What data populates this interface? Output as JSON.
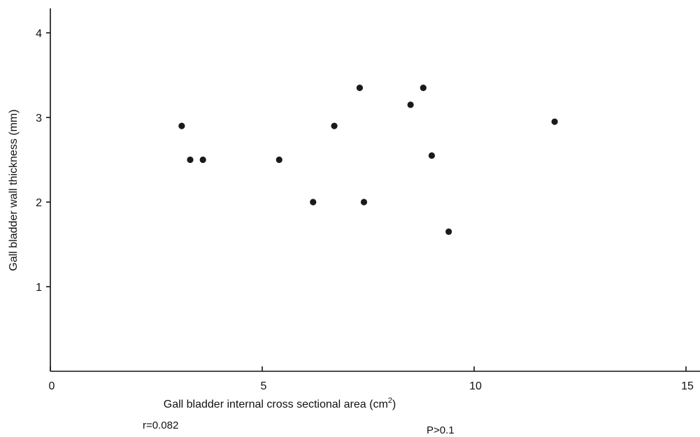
{
  "chart_data": {
    "type": "scatter",
    "title": "",
    "xlabel": "Gall bladder internal cross sectional area (cm",
    "xlabel_superscript": "2",
    "xlabel_suffix": ")",
    "ylabel": "Gall bladder wall thickness (mm)",
    "xlim": [
      0,
      15.3
    ],
    "ylim": [
      0,
      4.3
    ],
    "x_ticks": [
      0,
      5,
      10,
      15
    ],
    "y_ticks": [
      1,
      2,
      3,
      4
    ],
    "x_tick_labels": [
      "0",
      "5",
      "10",
      "15"
    ],
    "y_tick_labels": [
      "1",
      "2",
      "3",
      "4"
    ],
    "grid": false,
    "points": [
      {
        "x": 3.1,
        "y": 2.9
      },
      {
        "x": 3.3,
        "y": 2.5
      },
      {
        "x": 3.6,
        "y": 2.5
      },
      {
        "x": 5.4,
        "y": 2.5
      },
      {
        "x": 6.2,
        "y": 2.0
      },
      {
        "x": 6.7,
        "y": 2.9
      },
      {
        "x": 7.3,
        "y": 3.35
      },
      {
        "x": 7.4,
        "y": 2.0
      },
      {
        "x": 8.5,
        "y": 3.15
      },
      {
        "x": 8.8,
        "y": 3.35
      },
      {
        "x": 9.0,
        "y": 2.55
      },
      {
        "x": 9.4,
        "y": 1.65
      },
      {
        "x": 11.9,
        "y": 2.95
      }
    ],
    "annotations": {
      "r": "r=0.082",
      "p": "P>0.1"
    }
  }
}
